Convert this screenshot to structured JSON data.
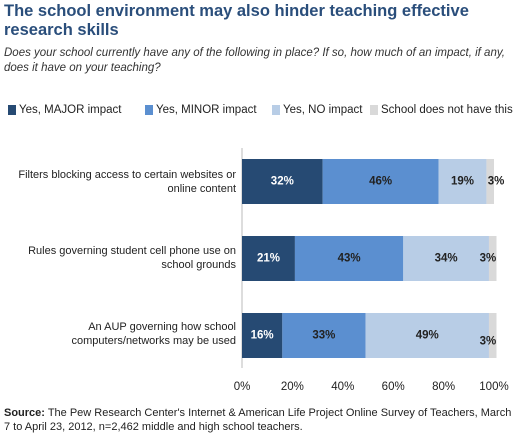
{
  "title": "The school environment may also hinder teaching effective research skills",
  "subtitle": "Does your school currently have any of the following in place? If so, how much of an impact, if any, does it have on your teaching?",
  "chart_data": {
    "type": "bar",
    "orientation": "horizontal",
    "stacked": true,
    "categories": [
      "Filters blocking access to certain websites or online content",
      "Rules governing student cell phone use on school grounds",
      "An AUP governing how school computers/networks may be used"
    ],
    "series": [
      {
        "name": "Yes, MAJOR impact",
        "color": "#264a73",
        "values": [
          32,
          21,
          16
        ],
        "labels": [
          "32%",
          "21%",
          "16%"
        ]
      },
      {
        "name": "Yes, MINOR impact",
        "color": "#5b8fd0",
        "values": [
          46,
          43,
          33
        ],
        "labels": [
          "46%",
          "43%",
          "33%"
        ]
      },
      {
        "name": "Yes, NO impact",
        "color": "#b8cde6",
        "values": [
          19,
          34,
          49
        ],
        "labels": [
          "19%",
          "34%",
          "49%"
        ]
      },
      {
        "name": "School does not have this",
        "color": "#d9d9d9",
        "values": [
          3,
          3,
          3
        ],
        "labels": [
          "3%",
          "3%",
          "3%"
        ]
      }
    ],
    "xlim": [
      0,
      100
    ],
    "xticks": [
      "0%",
      "20%",
      "40%",
      "60%",
      "80%",
      "100%"
    ],
    "legend_position": "top"
  },
  "source": {
    "label": "Source:",
    "text": " The Pew Research Center's Internet & American Life Project Online Survey of Teachers, March 7 to April 23, 2012, n=2,462 middle and high school teachers."
  }
}
